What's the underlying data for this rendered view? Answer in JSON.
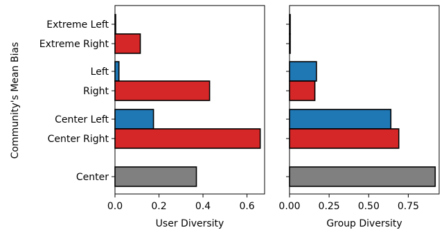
{
  "chart_data": {
    "type": "bar",
    "orientation": "horizontal",
    "ylabel": "Community's Mean Bias",
    "categories": [
      "Extreme Left",
      "Extreme Right",
      "Left",
      "Right",
      "Center Left",
      "Center Right",
      "Center"
    ],
    "category_colors": [
      "#1f77b4",
      "#d62728",
      "#1f77b4",
      "#d62728",
      "#1f77b4",
      "#d62728",
      "#808080"
    ],
    "panels": [
      {
        "xlabel": "User Diversity",
        "xlim": [
          0,
          0.68
        ],
        "xticks": [
          0.0,
          0.2,
          0.4,
          0.6
        ],
        "xtick_labels": [
          "0.0",
          "0.2",
          "0.4",
          "0.6"
        ],
        "values": [
          0.003,
          0.115,
          0.018,
          0.43,
          0.175,
          0.66,
          0.37
        ]
      },
      {
        "xlabel": "Group Diversity",
        "xlim": [
          0,
          0.945
        ],
        "xticks": [
          0.0,
          0.25,
          0.5,
          0.75
        ],
        "xtick_labels": [
          "0.00",
          "0.25",
          "0.50",
          "0.75"
        ],
        "values": [
          0.002,
          0.004,
          0.17,
          0.16,
          0.64,
          0.69,
          0.92
        ]
      }
    ]
  }
}
